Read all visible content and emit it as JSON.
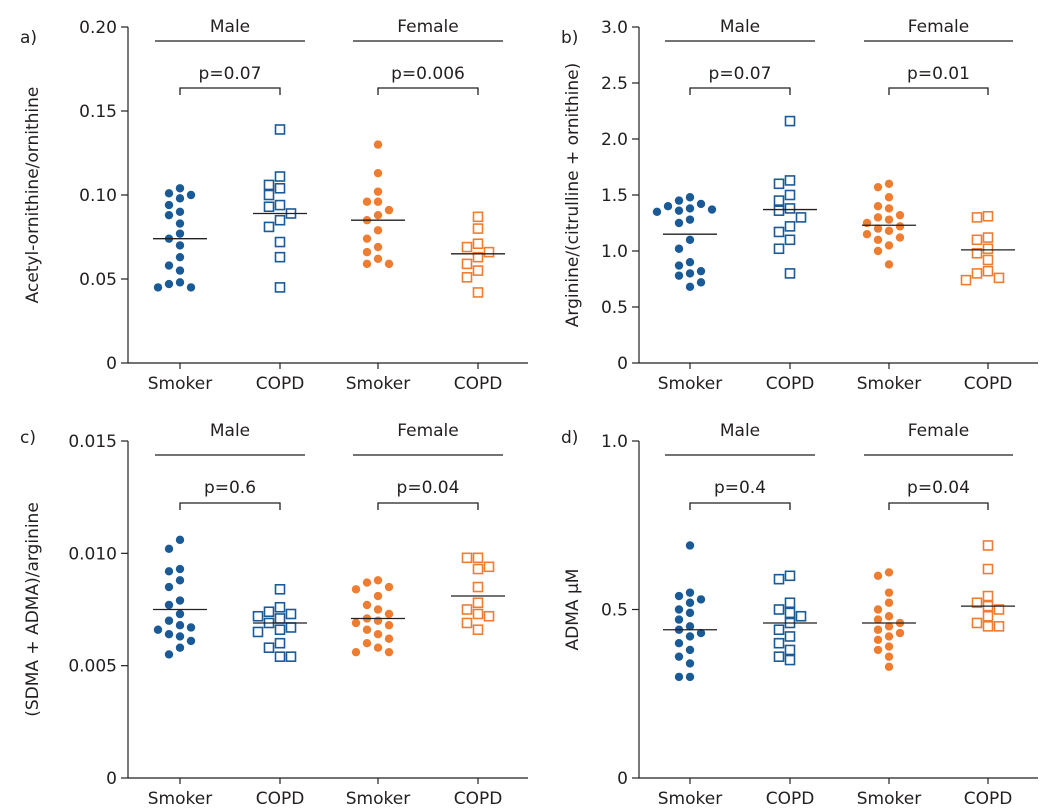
{
  "colors": {
    "male": "#1a5a96",
    "female": "#ef7d31",
    "axis": "#231f20"
  },
  "charts": [
    {
      "type": "scatter",
      "panel_letter": "a)",
      "ylabel": "Acetyl-ornithine/ornithine",
      "ylim": [
        0,
        0.2
      ],
      "yticks": [
        0,
        0.05,
        0.1,
        0.15,
        0.2
      ],
      "ytick_labels": [
        "0",
        "0.05",
        "0.10",
        "0.15",
        "0.20"
      ],
      "categories": [
        "Smoker",
        "COPD",
        "Smoker",
        "COPD"
      ],
      "groups": [
        {
          "label": "Male",
          "p_value": "p=0.07"
        },
        {
          "label": "Female",
          "p_value": "p=0.006"
        }
      ],
      "series": [
        {
          "sex": "male",
          "marker": "filled-circle",
          "mean": 0.074,
          "values": [
            0.104,
            0.101,
            0.1,
            0.098,
            0.094,
            0.09,
            0.088,
            0.083,
            0.077,
            0.074,
            0.07,
            0.063,
            0.058,
            0.055,
            0.048,
            0.047,
            0.045,
            0.045
          ]
        },
        {
          "sex": "male",
          "marker": "open-square",
          "mean": 0.089,
          "values": [
            0.139,
            0.111,
            0.106,
            0.104,
            0.1,
            0.094,
            0.093,
            0.089,
            0.085,
            0.081,
            0.072,
            0.063,
            0.045
          ]
        },
        {
          "sex": "female",
          "marker": "filled-circle",
          "mean": 0.085,
          "values": [
            0.13,
            0.113,
            0.102,
            0.096,
            0.096,
            0.091,
            0.088,
            0.085,
            0.079,
            0.074,
            0.069,
            0.066,
            0.062,
            0.059,
            0.059
          ]
        },
        {
          "sex": "female",
          "marker": "open-square",
          "mean": 0.065,
          "values": [
            0.087,
            0.08,
            0.071,
            0.069,
            0.066,
            0.063,
            0.059,
            0.055,
            0.051,
            0.042
          ]
        }
      ]
    },
    {
      "type": "scatter",
      "panel_letter": "b)",
      "ylabel": "Arginine/(citrulline + ornithine)",
      "ylim": [
        0,
        3.0
      ],
      "yticks": [
        0,
        0.5,
        1.0,
        1.5,
        2.0,
        2.5,
        3.0
      ],
      "ytick_labels": [
        "0",
        "0.5",
        "1.0",
        "1.5",
        "2.0",
        "2.5",
        "3.0"
      ],
      "categories": [
        "Smoker",
        "COPD",
        "Smoker",
        "COPD"
      ],
      "groups": [
        {
          "label": "Male",
          "p_value": "p=0.07"
        },
        {
          "label": "Female",
          "p_value": "p=0.01"
        }
      ],
      "series": [
        {
          "sex": "male",
          "marker": "filled-circle",
          "mean": 1.15,
          "values": [
            1.48,
            1.45,
            1.42,
            1.4,
            1.38,
            1.37,
            1.36,
            1.35,
            1.28,
            1.25,
            1.1,
            1.02,
            0.9,
            0.87,
            0.82,
            0.8,
            0.78,
            0.72,
            0.68
          ]
        },
        {
          "sex": "male",
          "marker": "open-square",
          "mean": 1.37,
          "values": [
            2.16,
            1.63,
            1.6,
            1.5,
            1.45,
            1.38,
            1.36,
            1.3,
            1.22,
            1.17,
            1.1,
            1.02,
            0.8
          ]
        },
        {
          "sex": "female",
          "marker": "filled-circle",
          "mean": 1.23,
          "values": [
            1.6,
            1.57,
            1.48,
            1.4,
            1.38,
            1.32,
            1.3,
            1.28,
            1.25,
            1.22,
            1.2,
            1.18,
            1.15,
            1.12,
            1.1,
            1.05,
            1.0,
            0.88
          ]
        },
        {
          "sex": "female",
          "marker": "open-square",
          "mean": 1.01,
          "values": [
            1.31,
            1.3,
            1.12,
            1.1,
            1.02,
            0.98,
            0.92,
            0.82,
            0.8,
            0.76,
            0.74
          ]
        }
      ]
    },
    {
      "type": "scatter",
      "panel_letter": "c)",
      "ylabel": "(SDMA + ADMA)/arginine",
      "ylim": [
        0,
        0.015
      ],
      "yticks": [
        0,
        0.005,
        0.01,
        0.015
      ],
      "ytick_labels": [
        "0",
        "0.005",
        "0.010",
        "0.015"
      ],
      "categories": [
        "Smoker",
        "COPD",
        "Smoker",
        "COPD"
      ],
      "groups": [
        {
          "label": "Male",
          "p_value": "p=0.6"
        },
        {
          "label": "Female",
          "p_value": "p=0.04"
        }
      ],
      "series": [
        {
          "sex": "male",
          "marker": "filled-circle",
          "mean": 0.0075,
          "values": [
            0.0106,
            0.0102,
            0.0093,
            0.0092,
            0.0088,
            0.0085,
            0.0079,
            0.0077,
            0.0073,
            0.007,
            0.0068,
            0.0067,
            0.0066,
            0.0064,
            0.0063,
            0.0061,
            0.0058,
            0.0055
          ]
        },
        {
          "sex": "male",
          "marker": "open-square",
          "mean": 0.0069,
          "values": [
            0.0084,
            0.0076,
            0.0074,
            0.0073,
            0.0072,
            0.0071,
            0.0069,
            0.0067,
            0.0066,
            0.0065,
            0.006,
            0.0058,
            0.0054,
            0.0054
          ]
        },
        {
          "sex": "female",
          "marker": "filled-circle",
          "mean": 0.0071,
          "values": [
            0.0088,
            0.0087,
            0.0085,
            0.0084,
            0.0081,
            0.0077,
            0.0075,
            0.0073,
            0.0071,
            0.007,
            0.0069,
            0.0068,
            0.0066,
            0.0064,
            0.0062,
            0.006,
            0.0058,
            0.0056,
            0.0056
          ]
        },
        {
          "sex": "female",
          "marker": "open-square",
          "mean": 0.0081,
          "values": [
            0.0098,
            0.0098,
            0.0094,
            0.0093,
            0.0085,
            0.0078,
            0.0075,
            0.0073,
            0.0072,
            0.0069,
            0.0066
          ]
        }
      ]
    },
    {
      "type": "scatter",
      "panel_letter": "d)",
      "ylabel": "ADMA μM",
      "ylim": [
        0,
        1.0
      ],
      "yticks": [
        0,
        0.5,
        1.0
      ],
      "ytick_labels": [
        "0",
        "0.5",
        "1.0"
      ],
      "categories": [
        "Smoker",
        "COPD",
        "Smoker",
        "COPD"
      ],
      "groups": [
        {
          "label": "Male",
          "p_value": "p=0.4"
        },
        {
          "label": "Female",
          "p_value": "p=0.04"
        }
      ],
      "series": [
        {
          "sex": "male",
          "marker": "filled-circle",
          "mean": 0.44,
          "values": [
            0.69,
            0.55,
            0.54,
            0.53,
            0.52,
            0.5,
            0.49,
            0.47,
            0.45,
            0.44,
            0.43,
            0.42,
            0.4,
            0.38,
            0.36,
            0.34,
            0.3,
            0.3
          ]
        },
        {
          "sex": "male",
          "marker": "open-square",
          "mean": 0.46,
          "values": [
            0.6,
            0.59,
            0.52,
            0.5,
            0.49,
            0.48,
            0.46,
            0.44,
            0.42,
            0.4,
            0.38,
            0.36,
            0.35
          ]
        },
        {
          "sex": "female",
          "marker": "filled-circle",
          "mean": 0.46,
          "values": [
            0.61,
            0.6,
            0.55,
            0.52,
            0.5,
            0.48,
            0.47,
            0.46,
            0.45,
            0.44,
            0.43,
            0.42,
            0.41,
            0.39,
            0.38,
            0.36,
            0.33
          ]
        },
        {
          "sex": "female",
          "marker": "open-square",
          "mean": 0.51,
          "values": [
            0.69,
            0.62,
            0.54,
            0.52,
            0.51,
            0.5,
            0.48,
            0.46,
            0.45,
            0.45
          ]
        }
      ]
    }
  ]
}
